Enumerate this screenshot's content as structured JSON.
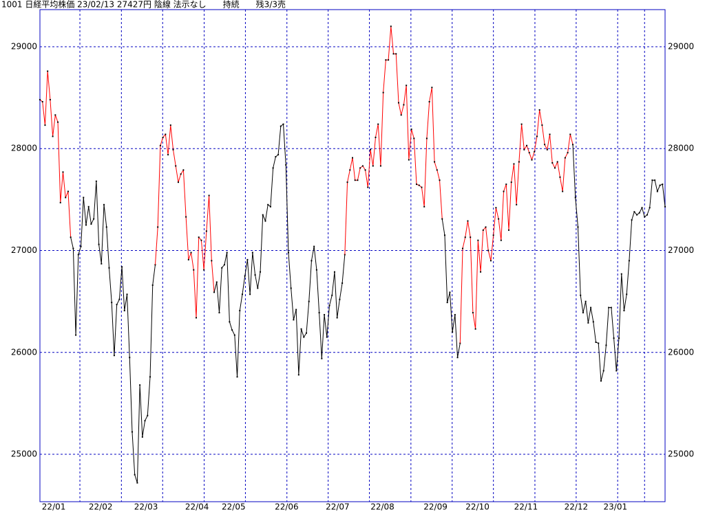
{
  "chart_data": {
    "type": "line",
    "title": "1001 日経平均株価 23/02/13 27427円 陰線 法示なし　　持続　　残3/3売",
    "frame_color": "#0000c0",
    "grid_color": "#0000c0",
    "grid": true,
    "point_color": "#000000",
    "xlim": [
      0,
      244
    ],
    "ylim": [
      24535,
      29364
    ],
    "yticks": [
      25000,
      26000,
      27000,
      28000,
      29000
    ],
    "xticks": [
      {
        "value": 5.4,
        "label": "22/01"
      },
      {
        "value": 23.7,
        "label": "22/02"
      },
      {
        "value": 41.4,
        "label": "22/03"
      },
      {
        "value": 61.3,
        "label": "22/04"
      },
      {
        "value": 75.6,
        "label": "22/05"
      },
      {
        "value": 96.3,
        "label": "22/06"
      },
      {
        "value": 116.2,
        "label": "22/07"
      },
      {
        "value": 133.7,
        "label": "22/08"
      },
      {
        "value": 154.4,
        "label": "22/09"
      },
      {
        "value": 170.8,
        "label": "22/10"
      },
      {
        "value": 189.7,
        "label": "22/11"
      },
      {
        "value": 209.3,
        "label": "22/12"
      },
      {
        "value": 224.6,
        "label": "23/01"
      }
    ],
    "xgrid": [
      15.6,
      31.8,
      47.9,
      64.1,
      80.2,
      96.4,
      112.5,
      128.6,
      144.8,
      160.9,
      177.0,
      193.2,
      209.3,
      225.5,
      236.0
    ],
    "series": [
      {
        "color": "#ff0000",
        "values": [
          28480,
          28460,
          28230,
          28760,
          28480,
          28120,
          28330,
          28260,
          27470,
          27770,
          27520,
          27580,
          27130
        ]
      },
      {
        "color": "#000000",
        "values": [
          27020,
          26170,
          26960,
          27040,
          27520,
          27250,
          27430,
          27260,
          27310,
          27680,
          27060,
          26870,
          27450,
          27230,
          26830,
          26490,
          25970,
          26470,
          26520,
          26840,
          26410,
          26570,
          25950,
          25220,
          24800,
          24720,
          25680,
          25170,
          25330,
          25380,
          25760,
          26660,
          26860
        ]
      },
      {
        "color": "#ff0000",
        "values": [
          27230,
          28030,
          28110,
          28140,
          27940,
          28230,
          27990,
          27830,
          27670,
          27750,
          27790,
          27330,
          26910,
          26980,
          26810,
          26340,
          27130,
          27100,
          26810,
          27190,
          27540,
          26900,
          26590
        ]
      },
      {
        "color": "#000000",
        "values": [
          26690,
          26390,
          26830,
          26860,
          26980,
          26300,
          26220,
          26170,
          25760,
          26410,
          26570,
          26750,
          26910,
          26570,
          26980,
          26760,
          26630,
          26790,
          27350,
          27290,
          27450,
          27430,
          27810,
          27920,
          27940,
          28220,
          28240,
          27840,
          26980,
          26630,
          26320,
          26420,
          25780,
          26230,
          26150,
          26190,
          26500,
          26900,
          27040,
          26810,
          26390,
          25940,
          26370,
          26150,
          26460,
          26560,
          26790,
          26340,
          26520,
          26680,
          26960
        ]
      },
      {
        "color": "#ff0000",
        "values": [
          27670,
          27790,
          27910,
          27690,
          27690,
          27810,
          27830,
          27790,
          27620,
          27990,
          27830,
          28110,
          28240,
          27830,
          28550,
          28870,
          28870,
          29200,
          28930,
          28930,
          28450,
          28330,
          28430,
          28620,
          27890,
          28190,
          28100,
          27650,
          27640,
          27620,
          27430,
          28100,
          28460,
          28600,
          27870,
          27790,
          27690,
          27310
        ]
      },
      {
        "color": "#000000",
        "values": [
          27150,
          26490,
          26590,
          26200,
          26370,
          25950,
          26090
        ]
      },
      {
        "color": "#ff0000",
        "values": [
          27020,
          27130,
          27290,
          27130,
          26390,
          26230,
          27100,
          26790,
          27200,
          27230,
          27000,
          26900,
          27150,
          27420,
          27310,
          27100,
          27580,
          27650,
          27200,
          27670,
          27850,
          27450,
          27870,
          28240,
          27990,
          28030,
          27960,
          27890,
          27970,
          28120,
          28380,
          28230,
          28040,
          27990,
          28140,
          27860,
          27810,
          27870,
          27720,
          27580,
          27910,
          27960,
          28140,
          28040
        ]
      },
      {
        "color": "#000000",
        "values": [
          27520,
          27230,
          26560,
          26390,
          26500,
          26290,
          26440,
          26300,
          26100,
          26090,
          25720,
          25820,
          26070,
          26440,
          26440,
          26140,
          25820,
          26140,
          26770,
          26410,
          26570,
          26900,
          27300,
          27380,
          27350,
          27370,
          27420,
          27330,
          27350,
          27420,
          27690,
          27690,
          27580,
          27640,
          27650,
          27430
        ]
      }
    ]
  }
}
